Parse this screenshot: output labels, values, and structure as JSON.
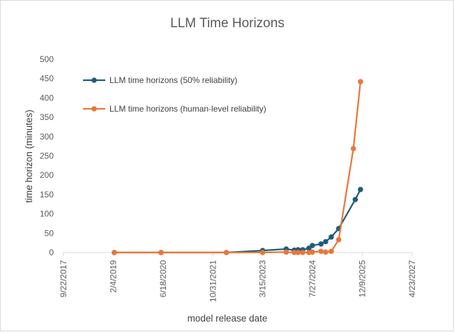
{
  "chart_data": {
    "type": "line",
    "title": "LLM Time Horizons",
    "xlabel": "model release date",
    "ylabel": "time horizon (minutes)",
    "x_axis_kind": "date",
    "xlim": [
      "2017-09-22",
      "2027-04-23"
    ],
    "x_ticks": [
      "9/22/2017",
      "2/4/2019",
      "6/18/2020",
      "10/31/2021",
      "3/15/2023",
      "7/27/2024",
      "12/9/2025",
      "4/23/2027"
    ],
    "ylim": [
      0,
      500
    ],
    "y_ticks": [
      "0",
      "50",
      "100",
      "150",
      "200",
      "250",
      "300",
      "350",
      "400",
      "450",
      "500"
    ],
    "grid": "none",
    "legend_position": "top-left",
    "series": [
      {
        "name": "LLM time horizons (50% reliability)",
        "color": "#1f5c7a",
        "marker": "circle",
        "points": [
          {
            "x": "2019-02-14",
            "y": 0
          },
          {
            "x": "2020-05-28",
            "y": 0
          },
          {
            "x": "2022-03-15",
            "y": 0
          },
          {
            "x": "2023-03-14",
            "y": 5
          },
          {
            "x": "2023-11-06",
            "y": 9
          },
          {
            "x": "2024-01-25",
            "y": 6
          },
          {
            "x": "2024-03-04",
            "y": 7
          },
          {
            "x": "2024-04-20",
            "y": 7
          },
          {
            "x": "2024-06-20",
            "y": 11
          },
          {
            "x": "2024-07-25",
            "y": 18
          },
          {
            "x": "2024-10-20",
            "y": 22
          },
          {
            "x": "2024-12-05",
            "y": 28
          },
          {
            "x": "2025-01-31",
            "y": 40
          },
          {
            "x": "2025-04-16",
            "y": 62
          },
          {
            "x": "2025-09-29",
            "y": 137
          },
          {
            "x": "2025-11-20",
            "y": 163
          }
        ]
      },
      {
        "name": "LLM time horizons (human-level reliability)",
        "color": "#e8773a",
        "marker": "circle",
        "points": [
          {
            "x": "2019-02-14",
            "y": 0
          },
          {
            "x": "2020-05-28",
            "y": 0
          },
          {
            "x": "2022-03-15",
            "y": 0
          },
          {
            "x": "2023-03-14",
            "y": 0
          },
          {
            "x": "2023-11-06",
            "y": 1
          },
          {
            "x": "2024-01-25",
            "y": 0
          },
          {
            "x": "2024-03-04",
            "y": 0
          },
          {
            "x": "2024-04-20",
            "y": 0
          },
          {
            "x": "2024-06-20",
            "y": 0
          },
          {
            "x": "2024-07-25",
            "y": 1
          },
          {
            "x": "2024-10-20",
            "y": 3
          },
          {
            "x": "2024-12-05",
            "y": 1
          },
          {
            "x": "2025-01-31",
            "y": 3
          },
          {
            "x": "2025-04-16",
            "y": 33
          },
          {
            "x": "2025-09-10",
            "y": 269
          },
          {
            "x": "2025-11-20",
            "y": 442
          }
        ]
      }
    ]
  }
}
